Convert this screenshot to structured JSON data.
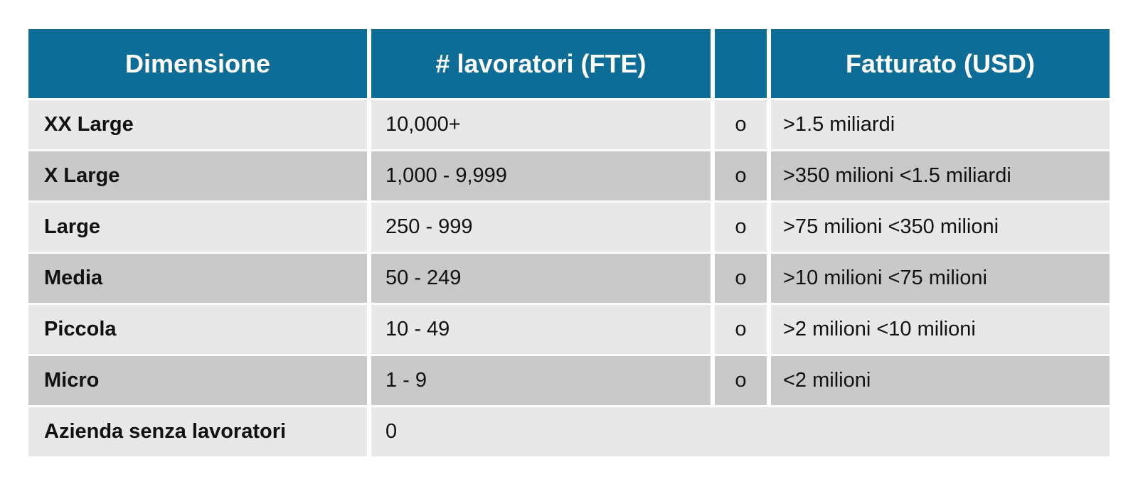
{
  "table": {
    "headers": {
      "dimensione": "Dimensione",
      "lavoratori": "# lavoratori (FTE)",
      "connector": "",
      "fatturato": "Fatturato (USD)"
    },
    "rows": [
      {
        "dimensione": "XX Large",
        "lavoratori": "10,000+",
        "connector": "o",
        "fatturato": ">1.5 miliardi"
      },
      {
        "dimensione": "X Large",
        "lavoratori": "1,000 - 9,999",
        "connector": "o",
        "fatturato": ">350 milioni <1.5 miliardi"
      },
      {
        "dimensione": "Large",
        "lavoratori": "250 - 999",
        "connector": "o",
        "fatturato": ">75 milioni <350 milioni"
      },
      {
        "dimensione": "Media",
        "lavoratori": "50 - 249",
        "connector": "o",
        "fatturato": ">10 milioni <75 milioni"
      },
      {
        "dimensione": "Piccola",
        "lavoratori": "10 - 49",
        "connector": "o",
        "fatturato": ">2 milioni <10 milioni"
      },
      {
        "dimensione": "Micro",
        "lavoratori": "1 - 9",
        "connector": "o",
        "fatturato": "<2 milioni"
      },
      {
        "dimensione": "Azienda senza lavoratori",
        "lavoratori": "0",
        "connector": "",
        "fatturato": ""
      }
    ],
    "colors": {
      "header_bg": "#0e6d96",
      "header_text": "#ffffff",
      "row_light": "#e8e8e8",
      "row_dark": "#c9c9c9",
      "body_text": "#111111",
      "gutter": "#ffffff"
    }
  }
}
